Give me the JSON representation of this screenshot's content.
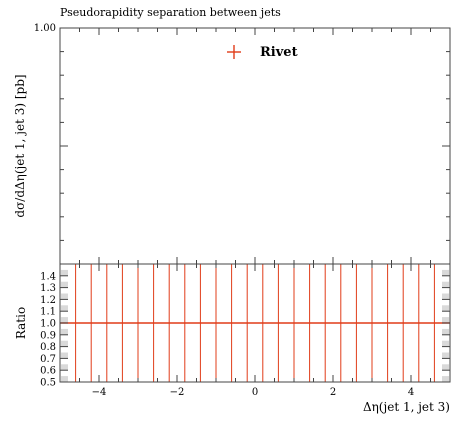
{
  "chart_data": {
    "type": "scatter",
    "title": "Pseudorapidity separation between jets",
    "legend": {
      "label": "Rivet",
      "placement": "top-center"
    },
    "colors": {
      "rivet": "#e03c18",
      "axis": "#444444",
      "ratio_band": "#d9d9d9"
    },
    "main": {
      "ylabel": "dσ/dΔη(jet 1, jet 3) [pb]",
      "ylim": [
        0,
        1.0
      ],
      "ytick_label": "1.00",
      "points": []
    },
    "ratio": {
      "ylabel": "Ratio",
      "ylim": [
        0.5,
        1.5
      ],
      "yticks": [
        "0.5",
        "0.6",
        "0.7",
        "0.8",
        "0.9",
        "1.0",
        "1.1",
        "1.2",
        "1.3",
        "1.4"
      ],
      "reference": 1.0
    },
    "x": {
      "label": "Δη(jet 1, jet 3)",
      "xlim": [
        -5,
        5
      ],
      "ticks": [
        "−4",
        "−2",
        "0",
        "2",
        "4"
      ],
      "bin_edges": [
        -5,
        -4.6,
        -4.2,
        -3.8,
        -3.4,
        -3.0,
        -2.6,
        -2.2,
        -1.8,
        -1.4,
        -1.0,
        -0.6,
        -0.2,
        0.2,
        0.6,
        1.0,
        1.4,
        1.8,
        2.2,
        2.6,
        3.0,
        3.4,
        3.8,
        4.2,
        4.6,
        5.0
      ]
    }
  }
}
